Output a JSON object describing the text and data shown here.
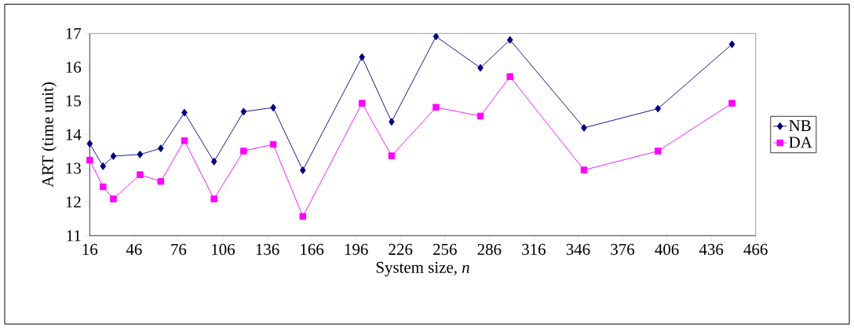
{
  "chart_data": {
    "type": "line",
    "xlabel": "System size, *n*",
    "ylabel": "ART (time unit)",
    "x": [
      16,
      25,
      32,
      50,
      64,
      80,
      100,
      120,
      140,
      160,
      200,
      220,
      250,
      280,
      300,
      350,
      400,
      450
    ],
    "xlim": [
      16,
      466
    ],
    "xticks": [
      16,
      46,
      76,
      106,
      136,
      166,
      196,
      226,
      256,
      286,
      316,
      346,
      376,
      406,
      436,
      466
    ],
    "ylim": [
      11,
      17
    ],
    "yticks": [
      11,
      12,
      13,
      14,
      15,
      16,
      17
    ],
    "legend": "right",
    "series": [
      {
        "name": "NB",
        "color": "#000080",
        "marker": "diamond",
        "values": [
          13.73,
          13.06,
          13.36,
          13.41,
          13.59,
          14.65,
          13.2,
          14.68,
          14.8,
          12.94,
          16.3,
          14.38,
          16.91,
          15.98,
          16.81,
          14.2,
          14.77,
          16.68
        ]
      },
      {
        "name": "DA",
        "color": "#ff00ff",
        "marker": "square",
        "values": [
          13.24,
          12.45,
          12.09,
          12.81,
          12.61,
          13.82,
          12.09,
          13.51,
          13.71,
          11.57,
          14.93,
          13.37,
          14.81,
          14.55,
          15.72,
          12.95,
          13.51,
          14.93
        ]
      }
    ]
  }
}
